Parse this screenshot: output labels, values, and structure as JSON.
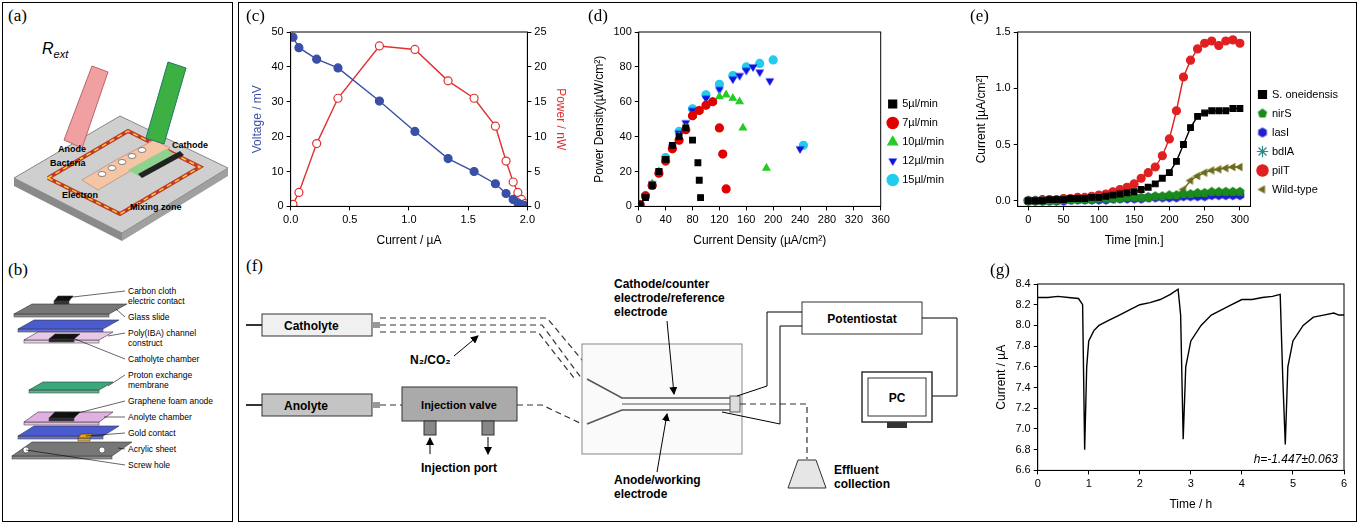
{
  "panel_labels": [
    "(a)",
    "(b)",
    "(c)",
    "(d)",
    "(e)",
    "(f)",
    "(g)"
  ],
  "diagram_a": {
    "resistor": {
      "symbol": "R",
      "subscript": "ext"
    },
    "labels": [
      "Cathode",
      "Anode",
      "Bacteria",
      "Electron",
      "Mixing zone"
    ]
  },
  "diagram_b": {
    "labels": [
      "Carbon cloth electric contact",
      "Glass slide",
      "Poly(IBA) channel construct",
      "Catholyte chamber",
      "Proton exchange membrane",
      "Graphene foam anode",
      "Anolyte chamber",
      "Gold contact",
      "Acrylic sheet",
      "Screw hole"
    ]
  },
  "diagram_f": {
    "catholyte": "Catholyte",
    "anolyte": "Anolyte",
    "gas": "N₂/CO₂",
    "injection_valve": "Injection valve",
    "injection_port": "Injection port",
    "cathode": "Cathode/counter electrode/reference electrode",
    "potentiostat": "Potentiostat",
    "pc": "PC",
    "effluent": "Effluent collection",
    "anode": "Anode/working electrode"
  },
  "chart_data": [
    {
      "type": "line",
      "x_label": "Current / µA",
      "y_label": "Voltage / mV",
      "y2_label": "Power / nW",
      "grid": false,
      "xlim": [
        0,
        2
      ],
      "xticks": [
        {
          "value": 0,
          "label": "0.0"
        },
        0.5,
        {
          "value": 1,
          "label": "1.0"
        },
        1.5,
        {
          "value": 2,
          "label": "2.0"
        }
      ],
      "ylim": [
        0,
        50
      ],
      "yticks": [
        0,
        10,
        20,
        30,
        40,
        50
      ],
      "y2lim": [
        0,
        25
      ],
      "y2ticks": [
        0,
        5,
        10,
        15,
        20,
        25
      ],
      "x": [
        0.02,
        0.07,
        0.22,
        0.4,
        0.75,
        1.05,
        1.33,
        1.55,
        1.73,
        1.82,
        1.88,
        1.92,
        1.95,
        1.98
      ],
      "series": [
        {
          "color": "#3a4fa8",
          "marker": "circle",
          "values": [
            48.5,
            45.5,
            42.2,
            39.7,
            30.2,
            21.5,
            13.7,
            10,
            6.5,
            3.7,
            2,
            1,
            0.5,
            0.2
          ]
        },
        {
          "color": "#e03030",
          "marker": "open_circle",
          "axis": "y2",
          "values": [
            0.3,
            2,
            9,
            15.5,
            23,
            22.5,
            18,
            15.5,
            11.5,
            6.5,
            3.5,
            2,
            1,
            0.4
          ]
        }
      ]
    },
    {
      "type": "scatter",
      "x_label": "Current Density (µA/cm²)",
      "y_label": "Power Density(µW/cm²)",
      "grid": false,
      "legend": "right",
      "xlim": [
        0,
        360
      ],
      "xticks": [
        0,
        40,
        80,
        120,
        160,
        200,
        240,
        280,
        320,
        360
      ],
      "ylim": [
        0,
        100
      ],
      "yticks": [
        0,
        20,
        40,
        60,
        80,
        100
      ],
      "series": [
        {
          "name": "5µl/min",
          "color": "#000000",
          "marker": "square",
          "x": [
            2,
            10,
            20,
            30,
            40,
            50,
            60,
            70,
            80,
            88,
            90,
            92
          ],
          "values": [
            1,
            5,
            12,
            20,
            27,
            35,
            40,
            45,
            38,
            25,
            15,
            5
          ]
        },
        {
          "name": "7µl/min",
          "color": "#e00000",
          "marker": "circle",
          "x": [
            2,
            10,
            20,
            30,
            40,
            50,
            60,
            70,
            80,
            90,
            100,
            110,
            120,
            125,
            130
          ],
          "values": [
            1,
            6,
            12,
            19,
            26,
            33,
            38,
            44,
            52,
            55,
            58,
            60,
            45,
            30,
            10
          ]
        },
        {
          "name": "10µl/min",
          "color": "#22cc22",
          "marker": "triangle",
          "x": [
            2,
            10,
            20,
            30,
            40,
            50,
            60,
            70,
            80,
            90,
            100,
            110,
            120,
            130,
            140,
            150,
            155,
            190
          ],
          "values": [
            1,
            6,
            13,
            20,
            27,
            34,
            40,
            45,
            52,
            55,
            58,
            60,
            63,
            64,
            62,
            60,
            45,
            22
          ]
        },
        {
          "name": "12µl/min",
          "color": "#1010e0",
          "marker": "triangle_down",
          "x": [
            2,
            10,
            20,
            30,
            40,
            50,
            60,
            70,
            80,
            100,
            120,
            140,
            150,
            160,
            170,
            180,
            195,
            240
          ],
          "values": [
            1,
            6,
            13,
            20,
            27,
            34,
            42,
            48,
            55,
            62,
            67,
            73,
            75,
            78,
            80,
            77,
            72,
            33
          ]
        },
        {
          "name": "15µl/min",
          "color": "#22ccee",
          "marker": "circle",
          "x": [
            2,
            10,
            20,
            40,
            60,
            80,
            100,
            120,
            140,
            160,
            180,
            200,
            245
          ],
          "values": [
            1,
            6,
            12,
            28,
            43,
            56,
            64,
            70,
            75,
            80,
            82,
            84,
            35
          ]
        }
      ]
    },
    {
      "type": "line",
      "x_label": "Time [min.]",
      "y_label": "Current [µA/cm²]",
      "grid": false,
      "legend": "right",
      "xlim": [
        -15,
        315
      ],
      "xticks": [
        0,
        50,
        100,
        150,
        200,
        250,
        300
      ],
      "ylim": [
        -0.05,
        1.5
      ],
      "yticks": [
        {
          "value": 0,
          "label": "0.0"
        },
        0.5,
        {
          "value": 1,
          "label": "1.0"
        },
        1.5
      ],
      "x": [
        0,
        10,
        20,
        30,
        40,
        50,
        60,
        70,
        80,
        90,
        100,
        110,
        120,
        130,
        140,
        150,
        160,
        170,
        180,
        190,
        200,
        210,
        220,
        230,
        240,
        250,
        260,
        270,
        280,
        290,
        300
      ],
      "series": [
        {
          "name": "S. oneidensis",
          "color": "#000000",
          "marker": "square",
          "values": [
            0,
            0,
            0,
            0.01,
            0.01,
            0.01,
            0.02,
            0.02,
            0.02,
            0.03,
            0.03,
            0.04,
            0.05,
            0.06,
            0.07,
            0.08,
            0.1,
            0.12,
            0.15,
            0.2,
            0.25,
            0.35,
            0.5,
            0.65,
            0.75,
            0.78,
            0.8,
            0.8,
            0.8,
            0.82,
            0.82
          ]
        },
        {
          "name": "nirS",
          "color": "#1a8a1a",
          "marker": "pentagon",
          "values": [
            0,
            0,
            0,
            0,
            0,
            0.01,
            0.01,
            0.01,
            0.01,
            0.01,
            0.02,
            0.02,
            0.02,
            0.02,
            0.03,
            0.03,
            0.03,
            0.03,
            0.04,
            0.04,
            0.05,
            0.05,
            0.06,
            0.06,
            0.07,
            0.07,
            0.08,
            0.08,
            0.08,
            0.08,
            0.08
          ]
        },
        {
          "name": "lasI",
          "color": "#2020d0",
          "marker": "hexagon",
          "values": [
            0,
            0,
            0,
            0,
            0,
            0,
            0.01,
            0.01,
            0.01,
            0.01,
            0.01,
            0.01,
            0.02,
            0.02,
            0.02,
            0.02,
            0.02,
            0.03,
            0.03,
            0.03,
            0.03,
            0.03,
            0.04,
            0.04,
            0.04,
            0.04,
            0.05,
            0.05,
            0.05,
            0.05,
            0.05
          ]
        },
        {
          "name": "bdlA",
          "color": "#2a8a8a",
          "marker": "star",
          "values": [
            0,
            0,
            0,
            0,
            0,
            0.01,
            0.01,
            0.01,
            0.01,
            0.01,
            0.01,
            0.02,
            0.02,
            0.02,
            0.02,
            0.03,
            0.03,
            0.03,
            0.04,
            0.04,
            0.04,
            0.05,
            0.05,
            0.06,
            0.06,
            0.07,
            0.07,
            0.07,
            0.08,
            0.08,
            0.08
          ]
        },
        {
          "name": "pilT",
          "color": "#e02020",
          "marker": "circle",
          "values": [
            0,
            0,
            0.01,
            0.01,
            0.01,
            0.02,
            0.02,
            0.03,
            0.03,
            0.04,
            0.05,
            0.06,
            0.08,
            0.1,
            0.12,
            0.15,
            0.2,
            0.25,
            0.3,
            0.4,
            0.55,
            0.8,
            1.1,
            1.25,
            1.35,
            1.4,
            1.42,
            1.38,
            1.42,
            1.43,
            1.4
          ]
        },
        {
          "name": "Wild-type",
          "color": "#6b6b1a",
          "marker": "triangle_left",
          "values": [
            0,
            0,
            0,
            0,
            0,
            0,
            0,
            0.01,
            0.01,
            0.01,
            0.01,
            0.01,
            0.01,
            0.02,
            0.02,
            0.02,
            0.02,
            0.02,
            0.03,
            0.03,
            0.04,
            0.05,
            0.1,
            0.18,
            0.22,
            0.25,
            0.27,
            0.28,
            0.29,
            0.3,
            0.3
          ]
        }
      ]
    },
    {
      "type": "line",
      "x_label": "Time / h",
      "y_label": "Current / µA",
      "annotation": "h=-1.447±0.063",
      "grid": false,
      "xlim": [
        0,
        6
      ],
      "xticks": [
        0,
        1,
        2,
        3,
        4,
        5,
        6
      ],
      "ylim": [
        6.6,
        8.4
      ],
      "yticks": [
        6.6,
        6.8,
        {
          "value": 7,
          "label": "7.0"
        },
        7.2,
        7.4,
        7.6,
        7.8,
        {
          "value": 8,
          "label": "8.0"
        },
        8.2,
        8.4
      ],
      "x": [
        0,
        0.2,
        0.4,
        0.6,
        0.8,
        0.88,
        0.92,
        0.96,
        1.0,
        1.1,
        1.2,
        1.4,
        1.6,
        1.8,
        2.0,
        2.2,
        2.4,
        2.6,
        2.75,
        2.8,
        2.85,
        2.9,
        3.0,
        3.2,
        3.4,
        3.6,
        3.8,
        4.0,
        4.2,
        4.4,
        4.6,
        4.75,
        4.8,
        4.85,
        4.9,
        5.0,
        5.2,
        5.4,
        5.6,
        5.8,
        5.9,
        6.0
      ],
      "series": [
        {
          "color": "#000000",
          "values": [
            8.27,
            8.27,
            8.28,
            8.27,
            8.26,
            8.2,
            6.8,
            7.6,
            7.85,
            7.95,
            8.0,
            8.05,
            8.1,
            8.15,
            8.2,
            8.22,
            8.25,
            8.3,
            8.35,
            8.1,
            6.9,
            7.6,
            7.85,
            8.0,
            8.1,
            8.15,
            8.2,
            8.25,
            8.25,
            8.27,
            8.28,
            8.3,
            7.5,
            6.85,
            7.6,
            7.85,
            8.0,
            8.08,
            8.1,
            8.12,
            8.1,
            8.1
          ]
        }
      ]
    }
  ]
}
